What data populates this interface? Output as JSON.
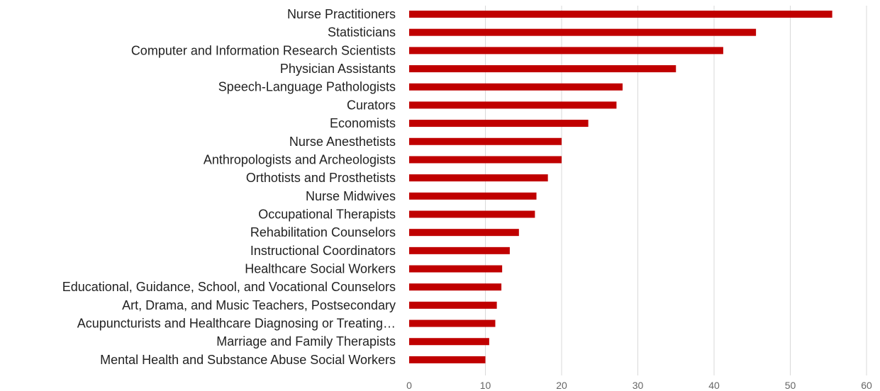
{
  "chart_data": {
    "type": "bar",
    "orientation": "horizontal",
    "categories": [
      "Nurse Practitioners",
      "Statisticians",
      "Computer and Information Research Scientists",
      "Physician Assistants",
      "Speech-Language Pathologists",
      "Curators",
      "Economists",
      "Nurse Anesthetists",
      "Anthropologists and Archeologists",
      "Orthotists and Prosthetists",
      "Nurse Midwives",
      "Occupational Therapists",
      "Rehabilitation Counselors",
      "Instructional Coordinators",
      "Healthcare Social Workers",
      "Educational, Guidance, School, and Vocational Counselors",
      "Art, Drama, and Music Teachers, Postsecondary",
      "Acupuncturists and Healthcare Diagnosing or Treating…",
      "Marriage and Family Therapists",
      "Mental Health and Substance Abuse Social Workers"
    ],
    "values": [
      55.5,
      45.5,
      41.2,
      35.0,
      28.0,
      27.2,
      23.5,
      20.0,
      20.0,
      18.2,
      16.7,
      16.5,
      14.4,
      13.2,
      12.2,
      12.1,
      11.5,
      11.3,
      10.5,
      10.0
    ],
    "x_ticks": [
      "0",
      "10",
      "20",
      "30",
      "40",
      "50",
      "60"
    ],
    "xlim": [
      0,
      60
    ],
    "grid": true,
    "bar_color": "#c00000"
  }
}
